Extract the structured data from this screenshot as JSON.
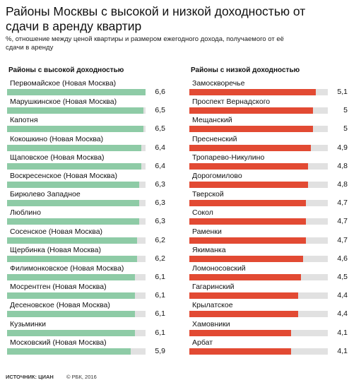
{
  "title": "Районы Москвы с высокой и низкой доходностью от сдачи в аренду квартир",
  "subtitle": "%, отношение между ценой квартиры и размером ежегодного дохода, получаемого от её сдачи в аренду",
  "colors": {
    "high": "#8ecba6",
    "low": "#e24a33",
    "track": "#e1e1e1"
  },
  "chart_data": [
    {
      "type": "bar",
      "title": "Районы с высокой доходностью",
      "xlim": [
        0,
        6.6
      ],
      "categories": [
        "Первомайское (Новая Москва)",
        "Марушкинское (Новая Москва)",
        "Капотня",
        "Кокошкино (Новая Москва)",
        "Щаповское (Новая Москва)",
        "Воскресенское (Новая Москва)",
        "Бирюлево Западное",
        "Люблино",
        "Сосенское (Новая Москва)",
        "Щербинка (Новая Москва)",
        "Филимонковское (Новая Москва)",
        "Мосрентген (Новая Москва)",
        "Десеновское (Новая Москва)",
        "Кузьминки",
        "Московский (Новая Москва)"
      ],
      "values": [
        6.6,
        6.5,
        6.5,
        6.4,
        6.4,
        6.3,
        6.3,
        6.3,
        6.2,
        6.2,
        6.1,
        6.1,
        6.1,
        6.1,
        5.9
      ],
      "value_labels": [
        "6,6",
        "6,5",
        "6,5",
        "6,4",
        "6,4",
        "6,3",
        "6,3",
        "6,3",
        "6,2",
        "6,2",
        "6,1",
        "6,1",
        "6,1",
        "6,1",
        "5,9"
      ]
    },
    {
      "type": "bar",
      "title": "Районы с низкой доходностью",
      "xlim": [
        0,
        5.6
      ],
      "categories": [
        "Замоскворечье",
        "Проспект Вернадского",
        "Мещанский",
        "Пресненский",
        "Тропарево-Никулино",
        "Дорогомилово",
        "Тверской",
        "Сокол",
        "Раменки",
        "Якиманка",
        "Ломоносовский",
        "Гагаринский",
        "Крылатское",
        "Хамовники",
        "Арбат"
      ],
      "values": [
        5.1,
        5,
        5,
        4.9,
        4.8,
        4.8,
        4.7,
        4.7,
        4.7,
        4.6,
        4.5,
        4.4,
        4.4,
        4.1,
        4.1
      ],
      "value_labels": [
        "5,1",
        "5",
        "5",
        "4,9",
        "4,8",
        "4,8",
        "4,7",
        "4,7",
        "4,7",
        "4,6",
        "4,5",
        "4,4",
        "4,4",
        "4,1",
        "4,1"
      ]
    }
  ],
  "footer": {
    "source": "ИСТОЧНИК: ЦИАН",
    "copyright": "© РБК, 2016"
  }
}
